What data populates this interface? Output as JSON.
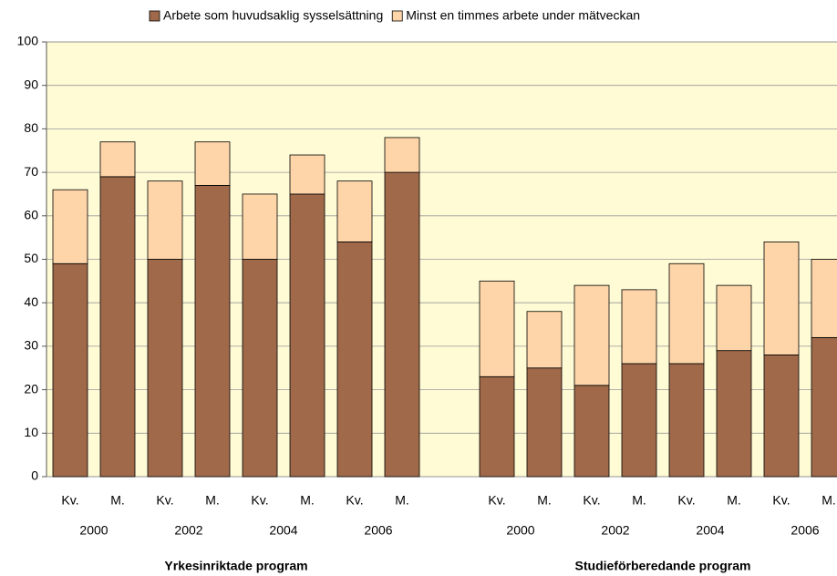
{
  "chart_data": {
    "type": "stacked_bar",
    "categories": [
      "Kv.",
      "M.",
      "Kv.",
      "M.",
      "Kv.",
      "M.",
      "Kv.",
      "M.",
      null,
      "Kv.",
      "M.",
      "Kv.",
      "M.",
      "Kv.",
      "M.",
      "Kv.",
      "M."
    ],
    "year_labels": [
      "2000",
      "2002",
      "2004",
      "2006",
      "2000",
      "2002",
      "2004",
      "2006"
    ],
    "group_labels": [
      "Yrkesinriktade program",
      "Studieförberedande program"
    ],
    "series": [
      {
        "name": "Arbete som huvudsaklig sysselsättning",
        "color": "#a0694a",
        "values": [
          49,
          69,
          50,
          67,
          50,
          65,
          54,
          70,
          null,
          23,
          25,
          21,
          26,
          26,
          29,
          28,
          32
        ]
      },
      {
        "name": "Minst en timmes arbete under mätveckan",
        "color": "#fdd5a8",
        "values": [
          17,
          8,
          18,
          10,
          15,
          9,
          14,
          8,
          null,
          22,
          13,
          23,
          17,
          23,
          15,
          26,
          18
        ]
      }
    ],
    "ylim": [
      0,
      100
    ],
    "yticks": [
      0,
      10,
      20,
      30,
      40,
      50,
      60,
      70,
      80,
      90,
      100
    ],
    "grid": true,
    "plot_background": "#fffbd5"
  }
}
